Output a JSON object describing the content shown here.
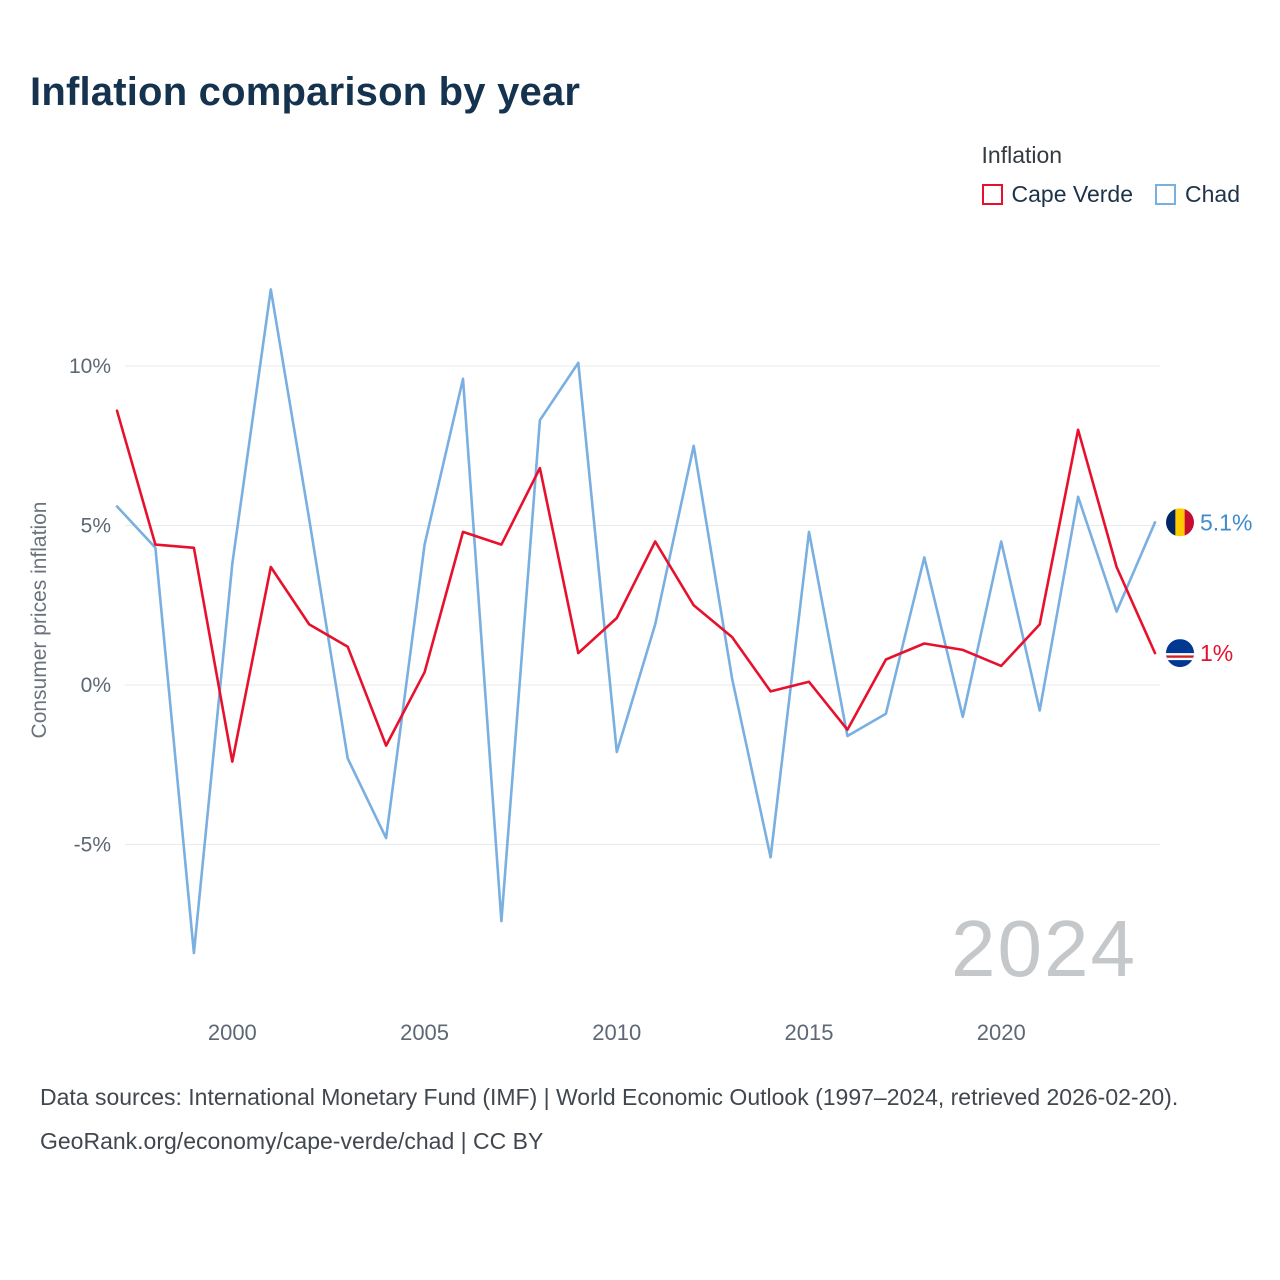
{
  "title": "Inflation comparison by year",
  "legend": {
    "title": "Inflation"
  },
  "chart_data": {
    "type": "line",
    "title": "Inflation comparison by year",
    "xlabel": "",
    "ylabel": "Consumer prices inflation",
    "x": [
      1997,
      1998,
      1999,
      2000,
      2001,
      2002,
      2003,
      2004,
      2005,
      2006,
      2007,
      2008,
      2009,
      2010,
      2011,
      2012,
      2013,
      2014,
      2015,
      2016,
      2017,
      2018,
      2019,
      2020,
      2021,
      2022,
      2023,
      2024
    ],
    "series": [
      {
        "name": "Cape Verde",
        "color": "#e8112d",
        "label_color": "#e8112d",
        "flag": "cape-verde",
        "end_label": "1%",
        "values": [
          8.6,
          4.4,
          4.3,
          -2.4,
          3.7,
          1.9,
          1.2,
          -1.9,
          0.4,
          4.8,
          4.4,
          6.8,
          1.0,
          2.1,
          4.5,
          2.5,
          1.5,
          -0.2,
          0.1,
          -1.4,
          0.8,
          1.3,
          1.1,
          0.6,
          1.9,
          8.0,
          3.7,
          1.0
        ]
      },
      {
        "name": "Chad",
        "color": "#79afe1",
        "label_color": "#3f8ccc",
        "flag": "chad",
        "end_label": "5.1%",
        "values": [
          5.6,
          4.3,
          -8.4,
          3.8,
          12.4,
          5.2,
          -2.3,
          -4.8,
          4.4,
          9.6,
          -7.4,
          8.3,
          10.1,
          -2.1,
          1.9,
          7.5,
          0.2,
          -5.4,
          4.8,
          -1.6,
          -0.9,
          4.0,
          -1.0,
          4.5,
          -0.8,
          5.9,
          2.3,
          5.1
        ]
      }
    ],
    "yticks": [
      {
        "value": 10,
        "label": "10%"
      },
      {
        "value": 5,
        "label": "5%"
      },
      {
        "value": 0,
        "label": "0%"
      },
      {
        "value": -5,
        "label": "-5%"
      }
    ],
    "xticks": [
      2000,
      2005,
      2010,
      2015,
      2020
    ],
    "ylim": [
      -10,
      14
    ],
    "grid": true,
    "legend_position": "top-right",
    "watermark": "2024",
    "flag_colors": {
      "chad": [
        "#002664",
        "#fecb00",
        "#c60c30"
      ],
      "cape_verde": [
        "#003893",
        "#ffffff",
        "#cf2027"
      ]
    }
  },
  "footer": {
    "sources_text": "Data sources: International Monetary Fund (IMF) | World Economic Outlook (1997–2024, retrieved 2026-02-20).",
    "attribution_text": "GeoRank.org/economy/cape-verde/chad | CC BY"
  }
}
